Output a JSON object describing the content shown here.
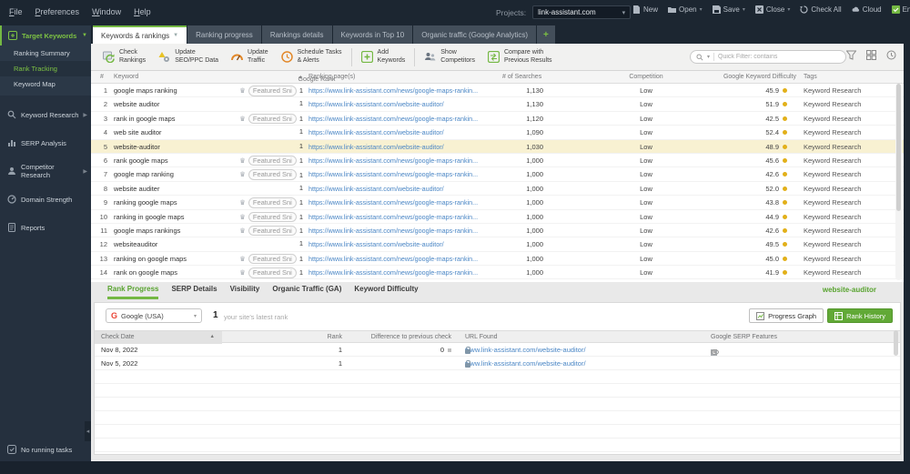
{
  "menu_bar": {
    "menus": [
      "File",
      "Preferences",
      "Window",
      "Help"
    ],
    "projects_label": "Projects:",
    "project_name": "link-assistant.com",
    "actions": [
      "New",
      "Open",
      "Save",
      "Close",
      "Check All",
      "Cloud",
      "Enterprise License"
    ]
  },
  "sidebar": {
    "target_keywords": {
      "label": "Target Keywords",
      "children": [
        "Ranking Summary",
        "Rank Tracking",
        "Keyword Map"
      ],
      "active_child": "Rank Tracking"
    },
    "items": [
      "Keyword Research",
      "SERP Analysis",
      "Competitor Research",
      "Domain Strength",
      "Reports"
    ],
    "status": "No running tasks"
  },
  "tabs": [
    {
      "label": "Keywords & rankings",
      "active": true
    },
    {
      "label": "Ranking progress",
      "active": false
    },
    {
      "label": "Rankings details",
      "active": false
    },
    {
      "label": "Keywords in Top 10",
      "active": false
    },
    {
      "label": "Organic traffic (Google Analytics)",
      "active": false
    },
    {
      "label": "+",
      "active": false
    }
  ],
  "toolbar": {
    "buttons": [
      {
        "line1": "Check",
        "line2": "Rankings",
        "icon": "check-rankings-icon"
      },
      {
        "line1": "Update",
        "line2": "SEO/PPC Data",
        "icon": "update-seo-icon"
      },
      {
        "line1": "Update",
        "line2": "Traffic",
        "icon": "update-traffic-icon"
      },
      {
        "line1": "Schedule Tasks",
        "line2": "& Alerts",
        "icon": "schedule-icon"
      },
      {
        "line1": "Add",
        "line2": "Keywords",
        "icon": "add-keywords-icon"
      },
      {
        "line1": "Show",
        "line2": "Competitors",
        "icon": "competitors-icon"
      },
      {
        "line1": "Compare with",
        "line2": "Previous Results",
        "icon": "compare-icon"
      }
    ],
    "quick_filter_placeholder": "Quick Filter: contains"
  },
  "keywords_table": {
    "columns": {
      "num": "#",
      "keyword": "Keyword",
      "rank": "Google Rank",
      "pages": "Ranking page(s)",
      "searches": "# of Searches",
      "competition": "Competition",
      "difficulty": "Google Keyword Difficulty",
      "tags": "Tags"
    },
    "featured_badge": "Featured Sni",
    "rows": [
      {
        "num": "1",
        "keyword": "google maps ranking",
        "featured": true,
        "rank": "1",
        "url": "https://www.link-assistant.com/news/google-maps-rankin...",
        "searches": "1,130",
        "competition": "Low",
        "difficulty": "45.9",
        "tags": "Keyword Research",
        "highlighted": false
      },
      {
        "num": "2",
        "keyword": "website auditor",
        "featured": false,
        "rank": "1",
        "url": "https://www.link-assistant.com/website-auditor/",
        "searches": "1,130",
        "competition": "Low",
        "difficulty": "51.9",
        "tags": "Keyword Research",
        "highlighted": false
      },
      {
        "num": "3",
        "keyword": "rank in google maps",
        "featured": true,
        "rank": "1",
        "url": "https://www.link-assistant.com/news/google-maps-rankin...",
        "searches": "1,120",
        "competition": "Low",
        "difficulty": "42.5",
        "tags": "Keyword Research",
        "highlighted": false
      },
      {
        "num": "4",
        "keyword": "web site auditor",
        "featured": false,
        "rank": "1",
        "url": "https://www.link-assistant.com/website-auditor/",
        "searches": "1,090",
        "competition": "Low",
        "difficulty": "52.4",
        "tags": "Keyword Research",
        "highlighted": false
      },
      {
        "num": "5",
        "keyword": "website-auditor",
        "featured": false,
        "rank": "1",
        "url": "https://www.link-assistant.com/website-auditor/",
        "searches": "1,030",
        "competition": "Low",
        "difficulty": "48.9",
        "tags": "Keyword Research",
        "highlighted": true
      },
      {
        "num": "6",
        "keyword": "rank google maps",
        "featured": true,
        "rank": "1",
        "url": "https://www.link-assistant.com/news/google-maps-rankin...",
        "searches": "1,000",
        "competition": "Low",
        "difficulty": "45.6",
        "tags": "Keyword Research",
        "highlighted": false
      },
      {
        "num": "7",
        "keyword": "google map ranking",
        "featured": true,
        "rank": "1",
        "url": "https://www.link-assistant.com/news/google-maps-rankin...",
        "searches": "1,000",
        "competition": "Low",
        "difficulty": "42.6",
        "tags": "Keyword Research",
        "highlighted": false
      },
      {
        "num": "8",
        "keyword": "website auditer",
        "featured": false,
        "rank": "1",
        "url": "https://www.link-assistant.com/website-auditor/",
        "searches": "1,000",
        "competition": "Low",
        "difficulty": "52.0",
        "tags": "Keyword Research",
        "highlighted": false
      },
      {
        "num": "9",
        "keyword": "ranking google maps",
        "featured": true,
        "rank": "1",
        "url": "https://www.link-assistant.com/news/google-maps-rankin...",
        "searches": "1,000",
        "competition": "Low",
        "difficulty": "43.8",
        "tags": "Keyword Research",
        "highlighted": false
      },
      {
        "num": "10",
        "keyword": "ranking in google maps",
        "featured": true,
        "rank": "1",
        "url": "https://www.link-assistant.com/news/google-maps-rankin...",
        "searches": "1,000",
        "competition": "Low",
        "difficulty": "44.9",
        "tags": "Keyword Research",
        "highlighted": false
      },
      {
        "num": "11",
        "keyword": "google maps rankings",
        "featured": true,
        "rank": "1",
        "url": "https://www.link-assistant.com/news/google-maps-rankin...",
        "searches": "1,000",
        "competition": "Low",
        "difficulty": "42.6",
        "tags": "Keyword Research",
        "highlighted": false
      },
      {
        "num": "12",
        "keyword": "websiteauditor",
        "featured": false,
        "rank": "1",
        "url": "https://www.link-assistant.com/website-auditor/",
        "searches": "1,000",
        "competition": "Low",
        "difficulty": "49.5",
        "tags": "Keyword Research",
        "highlighted": false
      },
      {
        "num": "13",
        "keyword": "ranking on google maps",
        "featured": true,
        "rank": "1",
        "url": "https://www.link-assistant.com/news/google-maps-rankin...",
        "searches": "1,000",
        "competition": "Low",
        "difficulty": "45.0",
        "tags": "Keyword Research",
        "highlighted": false
      },
      {
        "num": "14",
        "keyword": "rank on google maps",
        "featured": true,
        "rank": "1",
        "url": "https://www.link-assistant.com/news/google-maps-rankin...",
        "searches": "1,000",
        "competition": "Low",
        "difficulty": "41.9",
        "tags": "Keyword Research",
        "highlighted": false
      }
    ]
  },
  "bottom_panel": {
    "tabs": [
      {
        "label": "Rank Progress",
        "active": true
      },
      {
        "label": "SERP Details",
        "active": false
      },
      {
        "label": "Visibility",
        "active": false
      },
      {
        "label": "Organic Traffic (GA)",
        "active": false
      },
      {
        "label": "Keyword Difficulty",
        "active": false
      }
    ],
    "selected_keyword": "website-auditor",
    "search_engine": "Google (USA)",
    "latest_rank": "1",
    "latest_rank_caption": "your site's latest rank",
    "progress_graph_label": "Progress Graph",
    "rank_history_label": "Rank History",
    "history_table": {
      "columns": {
        "date": "Check Date",
        "rank": "Rank",
        "difference": "Difference to previous check",
        "url": "URL Found",
        "serp": "Google SERP Features"
      },
      "rows": [
        {
          "date": "Nov 8, 2022",
          "rank": "1",
          "difference": "0",
          "url": "www.link-assistant.com/website-auditor/",
          "serp_features": [
            "featured-snippet-icon",
            "star-icon",
            "eye-icon"
          ]
        },
        {
          "date": "Nov 5, 2022",
          "rank": "1",
          "difference": "",
          "url": "www.link-assistant.com/website-auditor/",
          "serp_features": []
        }
      ],
      "empty_rows": 6
    }
  }
}
